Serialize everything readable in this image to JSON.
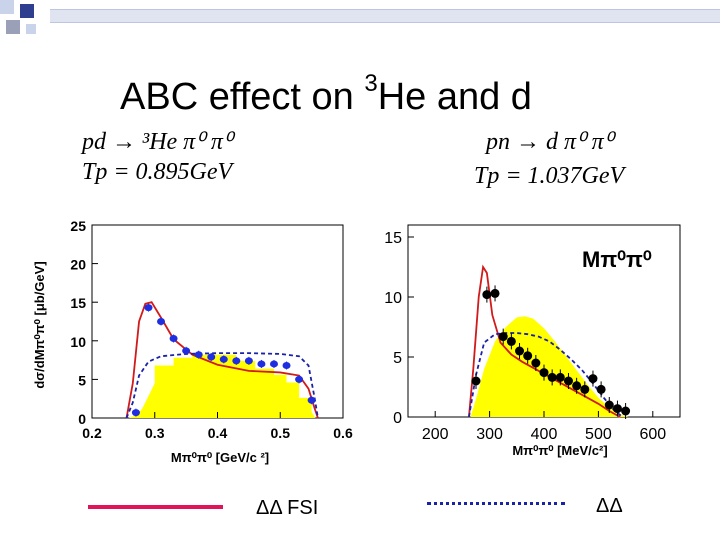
{
  "slide": {
    "title_main": "ABC effect on ",
    "title_sup": "3",
    "title_rest": "He and d",
    "colors": {
      "deco_blue": "#2f3f8f",
      "deco_light": "#c9d3ea",
      "deco_grey": "#9aa0b8"
    }
  },
  "formulas": {
    "left_reaction": "pd → ³He π⁰ π⁰",
    "left_energy": "Tp = 0.895GeV",
    "right_reaction": "pn → d π⁰ π⁰",
    "right_energy": "Tp = 1.037GeV"
  },
  "legend": {
    "solid_label": "ΔΔ FSI",
    "dotted_label": "ΔΔ",
    "solid_color": "#e0145a",
    "dotted_color": "#1a22a8"
  },
  "chart_data": [
    {
      "type": "scatter",
      "xlabel": "Mπ⁰π⁰ [GeV/c ²]",
      "ylabel": "dσ/dMπ⁰π⁰ [μb/GeV]",
      "xlim": [
        0.2,
        0.6
      ],
      "ylim": [
        0,
        25
      ],
      "x_ticks": [
        "0.2",
        "0.3",
        "0.4",
        "0.5",
        "0.6"
      ],
      "y_ticks": [
        "0",
        "5",
        "10",
        "15",
        "20",
        "25"
      ],
      "grid": false,
      "colors": {
        "data": "#1f2fe0",
        "phase_space": "#ffff00",
        "solid": "#d11a1a",
        "dashed": "#1a22a8"
      },
      "phase_space": {
        "x": [
          0.258,
          0.27,
          0.28,
          0.3,
          0.3,
          0.33,
          0.33,
          0.36,
          0.36,
          0.43,
          0.43,
          0.46,
          0.46,
          0.49,
          0.49,
          0.51,
          0.51,
          0.53,
          0.53,
          0.55,
          0.55,
          0.556
        ],
        "y": [
          0,
          0.3,
          1.2,
          4.5,
          6.8,
          6.8,
          7.8,
          7.8,
          8.2,
          8.2,
          7.4,
          7.4,
          6.4,
          6.4,
          5.6,
          5.6,
          4.6,
          4.6,
          2.6,
          2.6,
          0.8,
          0
        ]
      },
      "series": [
        {
          "kind": "points",
          "x": [
            0.27,
            0.29,
            0.31,
            0.33,
            0.35,
            0.37,
            0.39,
            0.41,
            0.43,
            0.45,
            0.47,
            0.49,
            0.51,
            0.53,
            0.55
          ],
          "y": [
            0.7,
            14.3,
            12.5,
            10.3,
            8.7,
            8.2,
            7.9,
            7.6,
            7.4,
            7.4,
            7.0,
            7.0,
            6.8,
            5.0,
            2.3
          ]
        },
        {
          "kind": "solid",
          "x": [
            0.255,
            0.265,
            0.275,
            0.285,
            0.295,
            0.31,
            0.33,
            0.36,
            0.4,
            0.45,
            0.5,
            0.53,
            0.545,
            0.555,
            0.56
          ],
          "y": [
            0,
            4.5,
            12.5,
            14.8,
            15.0,
            13.0,
            10.2,
            8.2,
            6.9,
            6.1,
            5.9,
            5.5,
            3.8,
            1.2,
            0
          ]
        },
        {
          "kind": "dashed",
          "x": [
            0.255,
            0.265,
            0.275,
            0.29,
            0.31,
            0.35,
            0.4,
            0.45,
            0.5,
            0.53,
            0.545,
            0.555,
            0.56
          ],
          "y": [
            0,
            2.0,
            5.5,
            7.3,
            8.0,
            8.3,
            8.4,
            8.4,
            8.3,
            8.0,
            6.8,
            2.5,
            0
          ]
        }
      ]
    },
    {
      "type": "scatter",
      "xlabel": "Mπ⁰π⁰ [MeV/c²]",
      "label": "Mπ⁰π⁰",
      "xlim": [
        150,
        650
      ],
      "ylim": [
        0,
        16
      ],
      "x_ticks": [
        "200",
        "300",
        "400",
        "500",
        "600"
      ],
      "y_ticks": [
        "0",
        "5",
        "10",
        "15"
      ],
      "grid": false,
      "colors": {
        "data": "#000000",
        "phase_space": "#ffff00",
        "solid": "#d11a1a",
        "dashed": "#1a22a8"
      },
      "phase_space": {
        "x": [
          265,
          275,
          290,
          310,
          330,
          350,
          365,
          380,
          400,
          420,
          440,
          460,
          480,
          500,
          520,
          540,
          555
        ],
        "y": [
          0,
          1.5,
          4.0,
          6.3,
          7.5,
          8.3,
          8.4,
          8.2,
          7.4,
          6.3,
          5.1,
          3.9,
          2.7,
          1.6,
          0.8,
          0.2,
          0
        ]
      },
      "series": [
        {
          "kind": "points",
          "x": [
            275,
            295,
            310,
            325,
            340,
            355,
            370,
            385,
            400,
            415,
            430,
            445,
            460,
            475,
            490,
            505,
            520,
            535,
            550
          ],
          "y": [
            3.0,
            10.2,
            10.3,
            6.7,
            6.3,
            5.5,
            5.1,
            4.5,
            3.7,
            3.3,
            3.3,
            3.0,
            2.6,
            2.3,
            3.2,
            2.3,
            1.0,
            0.7,
            0.5
          ]
        },
        {
          "kind": "solid",
          "x": [
            262,
            270,
            280,
            288,
            295,
            305,
            320,
            340,
            360,
            380,
            400,
            420,
            440,
            460,
            480,
            500,
            520,
            540
          ],
          "y": [
            0,
            4.0,
            10.0,
            12.5,
            12.0,
            8.5,
            6.2,
            5.2,
            4.6,
            4.1,
            3.6,
            3.1,
            2.6,
            2.1,
            1.6,
            1.1,
            0.5,
            0
          ]
        },
        {
          "kind": "dashed",
          "x": [
            262,
            275,
            290,
            310,
            330,
            350,
            370,
            390,
            410,
            430,
            450,
            470,
            490,
            510,
            530,
            545
          ],
          "y": [
            0,
            3.5,
            6.2,
            6.9,
            7.0,
            7.0,
            6.9,
            6.7,
            6.3,
            5.6,
            4.8,
            3.9,
            2.8,
            1.6,
            0.5,
            0
          ]
        }
      ]
    }
  ]
}
